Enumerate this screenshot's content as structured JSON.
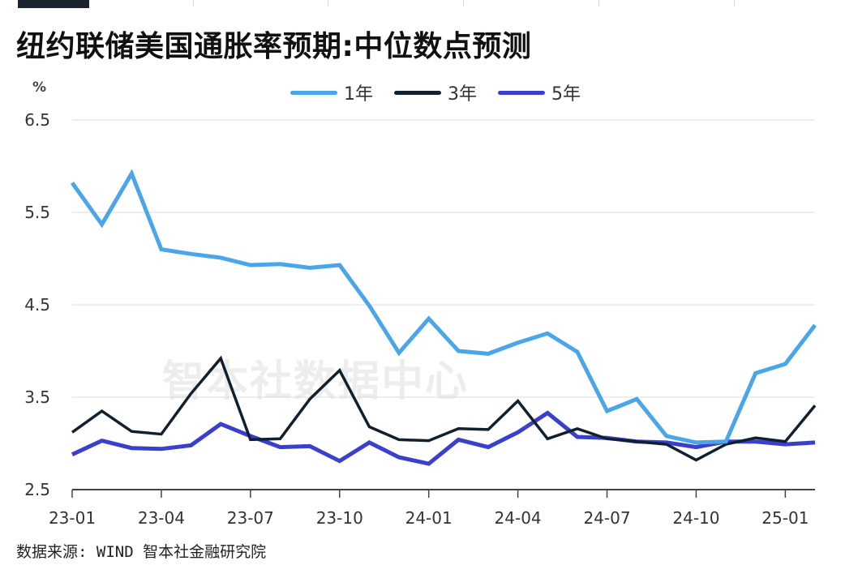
{
  "title": "纽约联储美国通胀率预期:中位数点预测",
  "unit": "%",
  "source": "数据来源: WIND 智本社金融研究院",
  "watermark": "智本社数据中心",
  "colors": {
    "y1": "#4aa6e8",
    "y3": "#10202e",
    "y5": "#3a3fcc",
    "grid": "#dddddd"
  },
  "chart_data": {
    "type": "line",
    "ylabel": "%",
    "ylim": [
      2.5,
      6.5
    ],
    "yticks": [
      "6.5",
      "5.5",
      "4.5",
      "3.5",
      "2.5"
    ],
    "ytick_values": [
      6.5,
      5.5,
      4.5,
      3.5,
      2.5
    ],
    "x": [
      "2023-01",
      "2023-02",
      "2023-03",
      "2023-04",
      "2023-05",
      "2023-06",
      "2023-07",
      "2023-08",
      "2023-09",
      "2023-10",
      "2023-11",
      "2023-12",
      "2024-01",
      "2024-02",
      "2024-03",
      "2024-04",
      "2024-05",
      "2024-06",
      "2024-07",
      "2024-08",
      "2024-09",
      "2024-10",
      "2024-11",
      "2024-12",
      "2025-01",
      "2025-02"
    ],
    "xtick_labels": [
      "23-01",
      "23-04",
      "23-07",
      "23-10",
      "24-01",
      "24-04",
      "24-07",
      "24-10",
      "25-01"
    ],
    "xtick_index": [
      0,
      3,
      6,
      9,
      12,
      15,
      18,
      21,
      24
    ],
    "grid": true,
    "legend_position": "top-center",
    "series": [
      {
        "name": "1年",
        "color": "#4aa6e8",
        "values": [
          5.82,
          5.37,
          5.92,
          5.1,
          5.05,
          5.01,
          4.93,
          4.94,
          4.9,
          4.93,
          4.49,
          3.98,
          4.35,
          4.0,
          3.97,
          4.09,
          4.19,
          3.99,
          3.35,
          3.48,
          3.08,
          3.01,
          3.02,
          3.76,
          3.86,
          4.28
        ]
      },
      {
        "name": "3年",
        "color": "#10202e",
        "values": [
          3.12,
          3.35,
          3.13,
          3.1,
          3.54,
          3.92,
          3.04,
          3.05,
          3.48,
          3.79,
          3.18,
          3.04,
          3.03,
          3.16,
          3.15,
          3.46,
          3.05,
          3.16,
          3.05,
          3.02,
          2.99,
          2.82,
          2.99,
          3.06,
          3.02,
          3.41
        ]
      },
      {
        "name": "5年",
        "color": "#3a3fcc",
        "values": [
          2.88,
          3.03,
          2.95,
          2.94,
          2.98,
          3.21,
          3.08,
          2.96,
          2.97,
          2.81,
          3.01,
          2.85,
          2.78,
          3.04,
          2.96,
          3.12,
          3.33,
          3.07,
          3.06,
          3.02,
          3.01,
          2.96,
          3.02,
          3.02,
          2.99,
          3.01
        ]
      }
    ]
  }
}
